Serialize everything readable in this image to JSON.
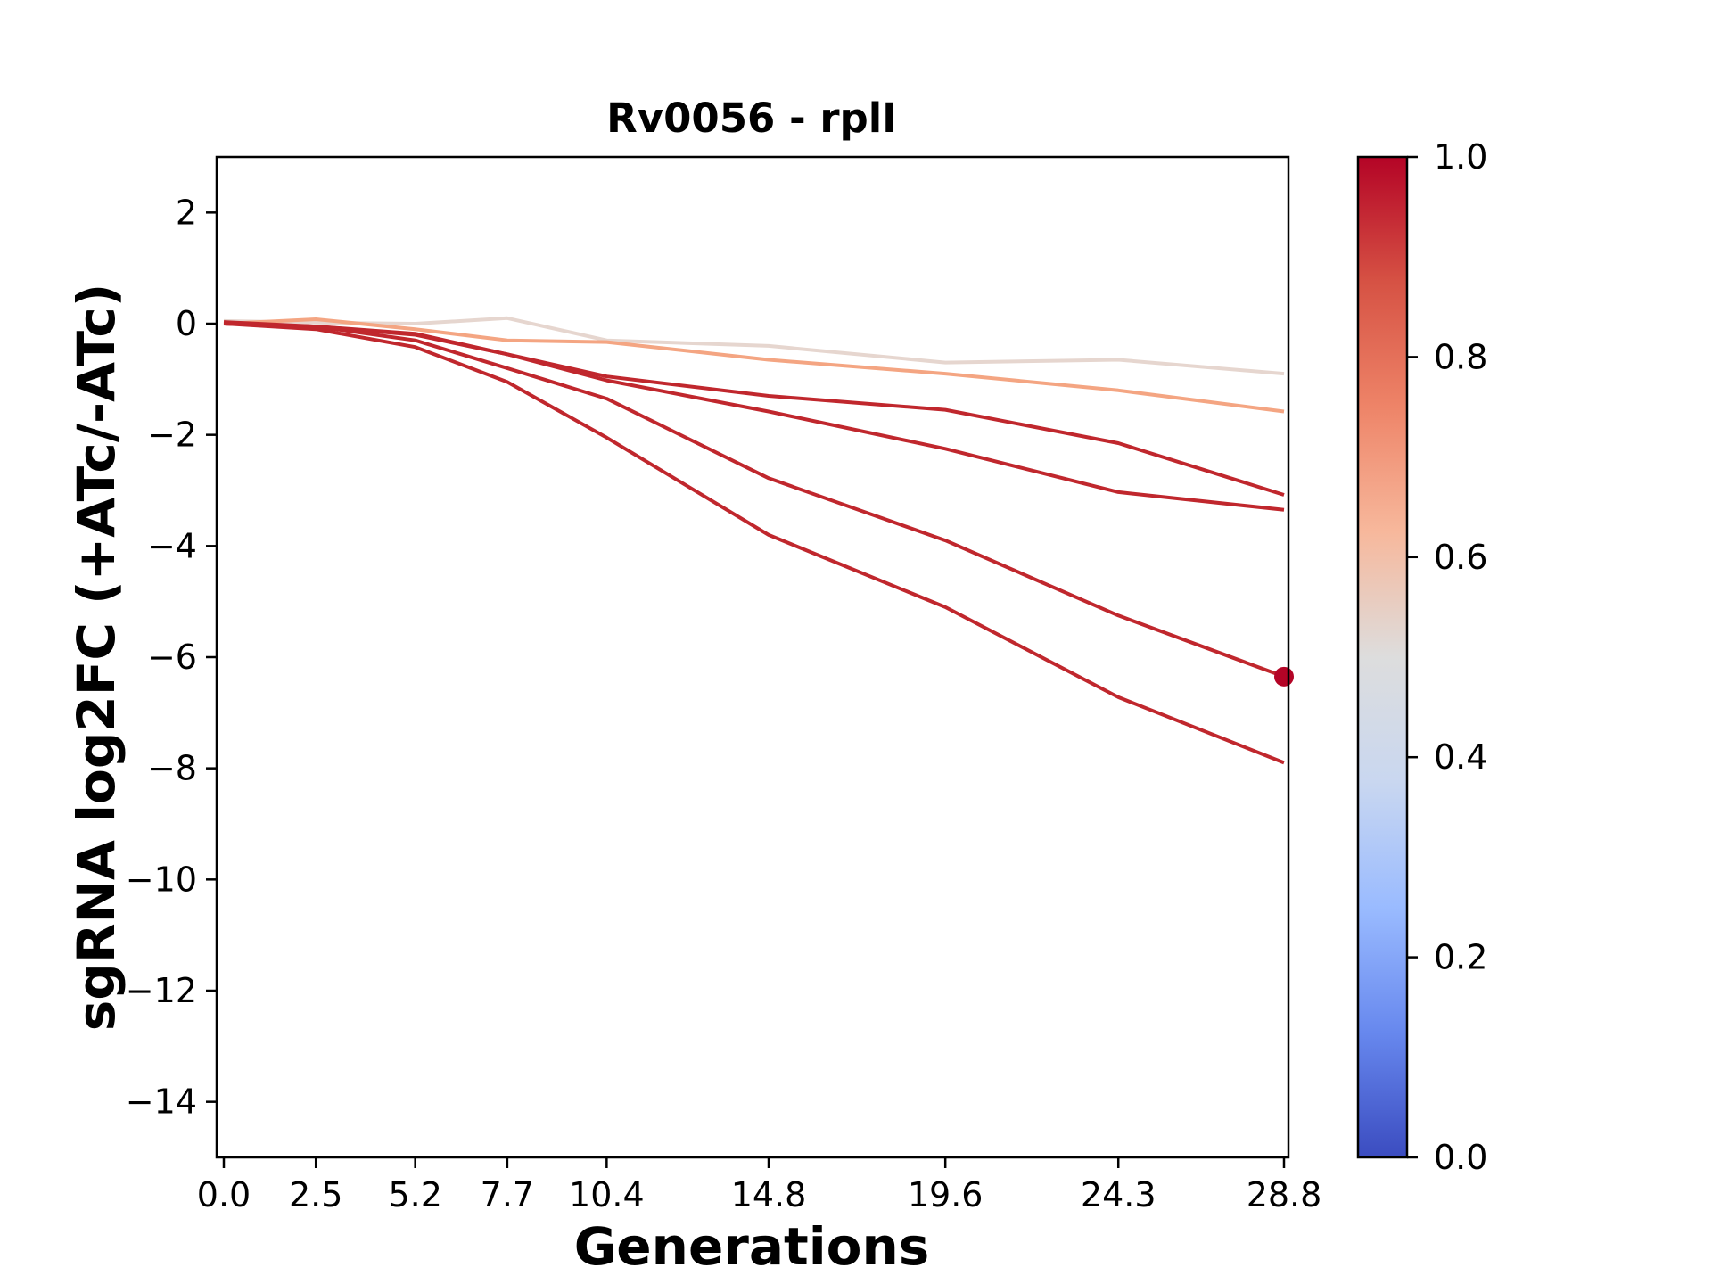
{
  "chart_data": {
    "type": "line",
    "title": "Rv0056 - rplI",
    "xlabel": "Generations",
    "ylabel": "sgRNA log2FC (+ATc/-ATc)",
    "x": [
      0.0,
      2.5,
      5.2,
      7.7,
      10.4,
      14.8,
      19.6,
      24.3,
      28.8
    ],
    "xtick_labels": [
      "0.0",
      "2.5",
      "5.2",
      "7.7",
      "10.4",
      "14.8",
      "19.6",
      "24.3",
      "28.8"
    ],
    "ylim": [
      -15,
      3
    ],
    "yticks": [
      2,
      0,
      -2,
      -4,
      -6,
      -8,
      -10,
      -12,
      -14
    ],
    "ytick_labels": [
      "2",
      "0",
      "−2",
      "−4",
      "−6",
      "−8",
      "−10",
      "−12",
      "−14"
    ],
    "series": [
      {
        "color": "#e6d6cf",
        "values": [
          0.05,
          0.02,
          0.0,
          0.1,
          -0.3,
          -0.4,
          -0.7,
          -0.65,
          -0.9
        ]
      },
      {
        "color": "#f4a582",
        "values": [
          0.0,
          0.08,
          -0.1,
          -0.3,
          -0.33,
          -0.65,
          -0.9,
          -1.2,
          -1.58
        ]
      },
      {
        "color": "#c0272d",
        "values": [
          0.0,
          -0.05,
          -0.18,
          -0.55,
          -0.95,
          -1.3,
          -1.55,
          -2.15,
          -3.08
        ]
      },
      {
        "color": "#c0272d",
        "values": [
          0.0,
          -0.05,
          -0.2,
          -0.55,
          -1.02,
          -1.58,
          -2.25,
          -3.03,
          -3.35
        ]
      },
      {
        "color": "#c0272d",
        "values": [
          0.03,
          -0.05,
          -0.3,
          -0.8,
          -1.35,
          -2.78,
          -3.9,
          -5.25,
          -6.35
        ]
      },
      {
        "color": "#c0272d",
        "values": [
          0.0,
          -0.1,
          -0.42,
          -1.05,
          -2.05,
          -3.8,
          -5.1,
          -6.72,
          -7.9
        ]
      }
    ],
    "highlight_point": {
      "x": 28.8,
      "y": -6.35,
      "color": "#b40426"
    },
    "colorbar": {
      "colormap": "coolwarm",
      "range": [
        0.0,
        1.0
      ],
      "ticks": [
        0.0,
        0.2,
        0.4,
        0.6,
        0.8,
        1.0
      ],
      "tick_labels": [
        "0.0",
        "0.2",
        "0.4",
        "0.6",
        "0.8",
        "1.0"
      ],
      "stops": [
        "#3b4cc0",
        "#6788ee",
        "#9abbff",
        "#c9d7f0",
        "#dddddd",
        "#f7b89c",
        "#ee8468",
        "#d65244",
        "#b40426"
      ]
    },
    "grid": false,
    "legend": "none"
  }
}
